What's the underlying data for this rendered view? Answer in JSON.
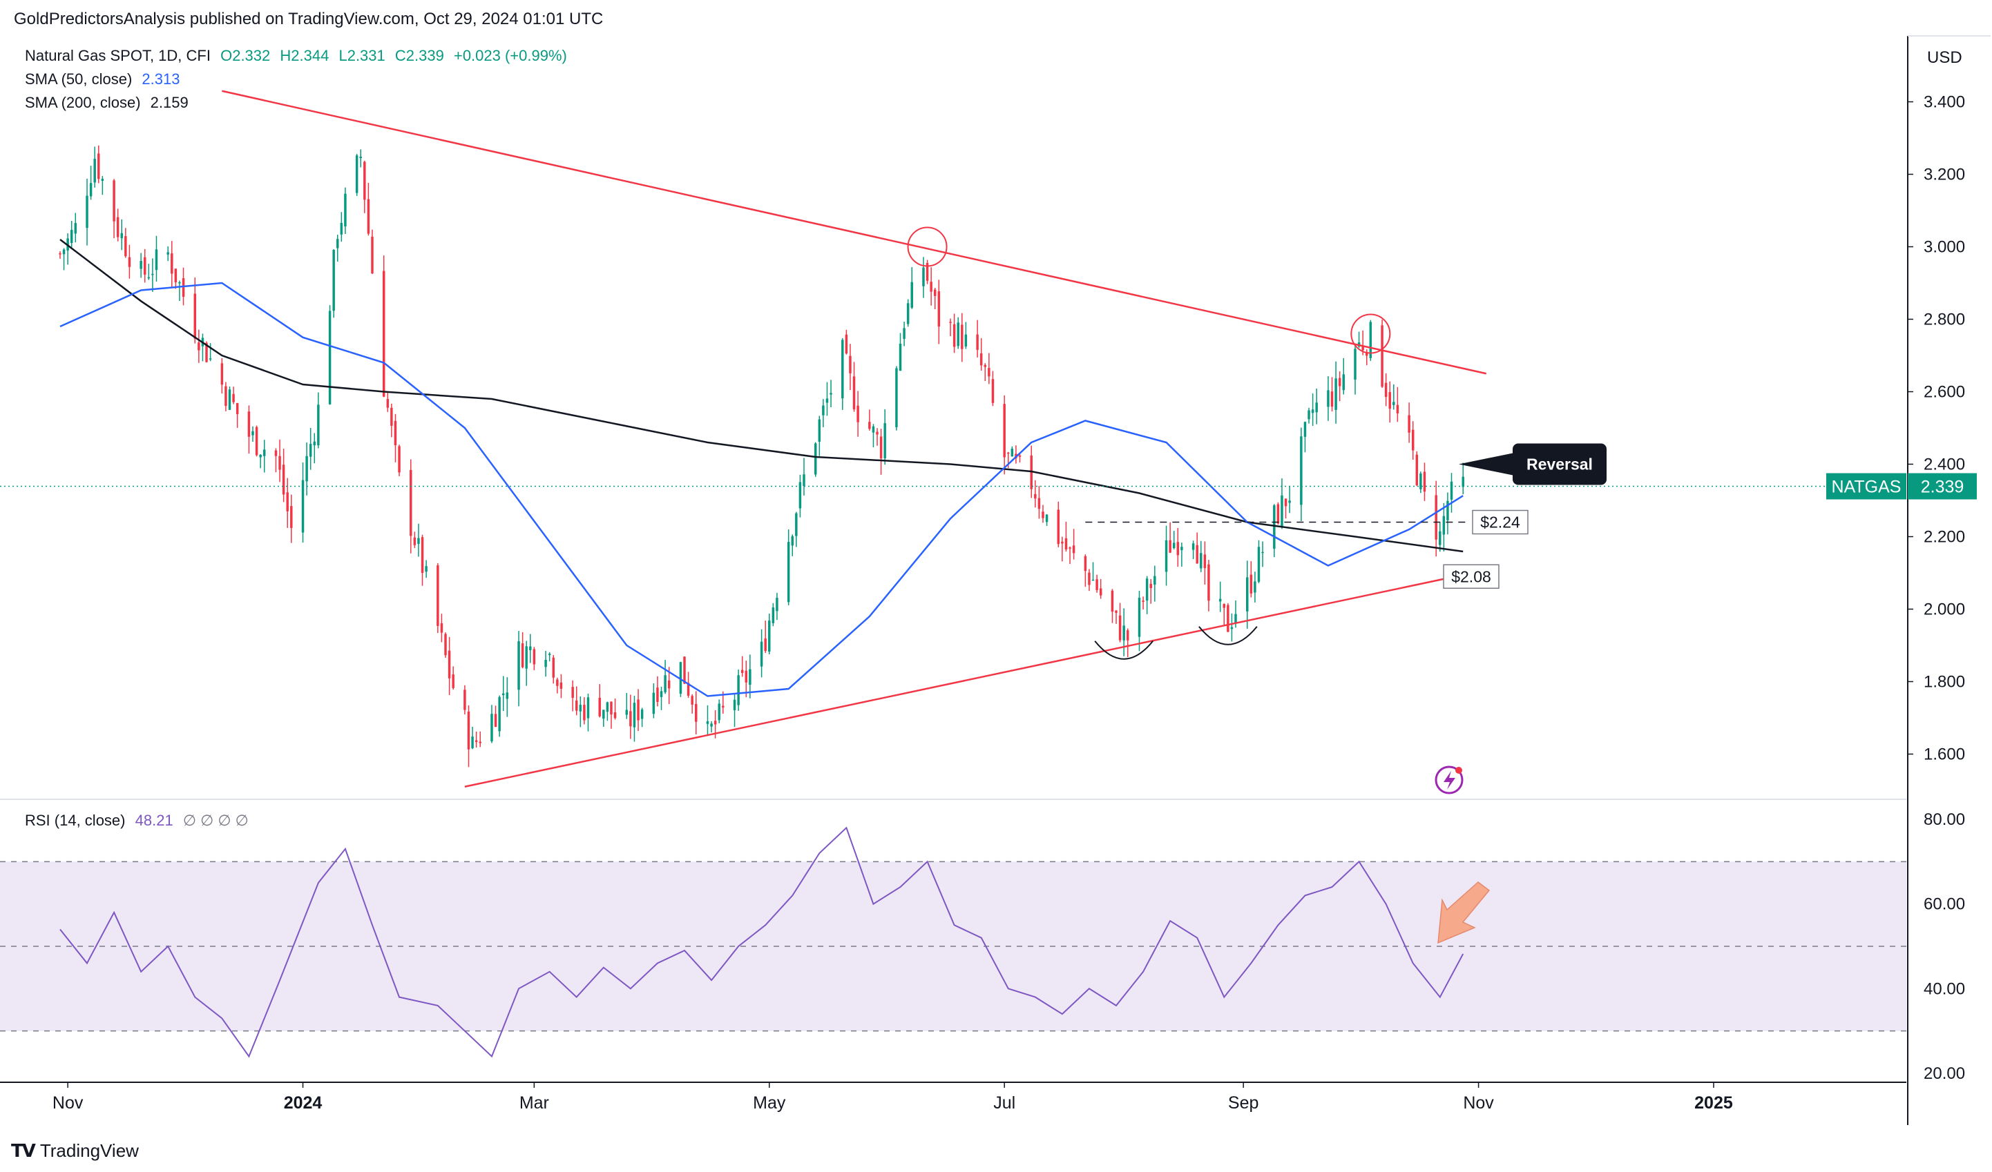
{
  "header": {
    "publisher_line": "GoldPredictorsAnalysis published on TradingView.com, Oct 29, 2024 01:01 UTC",
    "symbol_line": "Natural Gas SPOT, 1D, CFI",
    "ohlc": {
      "open": "O2.332",
      "high": "H2.344",
      "low": "L2.331",
      "close": "C2.339",
      "change": "+0.023 (+0.99%)"
    },
    "sma50_label": "SMA (50, close)",
    "sma50_value": "2.313",
    "sma200_label": "SMA (200, close)",
    "sma200_value": "2.159",
    "rsi_label": "RSI (14, close)",
    "rsi_value": "48.21",
    "rsi_extra": "∅ ∅ ∅ ∅"
  },
  "currency": "USD",
  "brand": "TradingView",
  "colors": {
    "up": "#089981",
    "down": "#f23645",
    "sma50": "#2962ff",
    "sma200": "#131722",
    "trendline": "#f23645",
    "rsi": "#7e57c2",
    "rsi_band": "#ede7f6",
    "last_price": "#089981",
    "callout": "#131722"
  },
  "annotations": {
    "reversal_label": "Reversal",
    "support_1": "$2.24",
    "support_2": "$2.08",
    "last_price_tag": "NATGAS",
    "last_price_value": "2.339"
  },
  "chart_data": [
    {
      "type": "candlestick",
      "ylim": [
        1.5,
        3.5
      ],
      "y_ticks": [
        "1.600",
        "1.800",
        "2.000",
        "2.200",
        "2.400",
        "2.600",
        "2.800",
        "3.000",
        "3.200",
        "3.400"
      ],
      "x_ticks": [
        "Nov",
        "2024",
        "Mar",
        "May",
        "Jul",
        "Sep",
        "Nov",
        "2025"
      ],
      "close_path": [
        [
          "2023-10-30",
          2.98
        ],
        [
          "2023-11-03",
          3.05
        ],
        [
          "2023-11-08",
          3.25
        ],
        [
          "2023-11-14",
          3.05
        ],
        [
          "2023-11-20",
          2.92
        ],
        [
          "2023-11-27",
          2.98
        ],
        [
          "2023-12-04",
          2.78
        ],
        [
          "2023-12-11",
          2.62
        ],
        [
          "2023-12-18",
          2.48
        ],
        [
          "2023-12-25",
          2.42
        ],
        [
          "2023-12-29",
          2.22
        ],
        [
          "2024-01-05",
          2.55
        ],
        [
          "2024-01-10",
          3.05
        ],
        [
          "2024-01-16",
          3.25
        ],
        [
          "2024-01-22",
          2.62
        ],
        [
          "2024-01-26",
          2.35
        ],
        [
          "2024-02-01",
          2.12
        ],
        [
          "2024-02-08",
          1.82
        ],
        [
          "2024-02-14",
          1.62
        ],
        [
          "2024-02-20",
          1.72
        ],
        [
          "2024-02-26",
          1.88
        ],
        [
          "2024-03-04",
          1.9
        ],
        [
          "2024-03-11",
          1.72
        ],
        [
          "2024-03-18",
          1.74
        ],
        [
          "2024-03-25",
          1.68
        ],
        [
          "2024-04-01",
          1.78
        ],
        [
          "2024-04-08",
          1.84
        ],
        [
          "2024-04-15",
          1.65
        ],
        [
          "2024-04-22",
          1.76
        ],
        [
          "2024-04-29",
          1.88
        ],
        [
          "2024-05-06",
          2.2
        ],
        [
          "2024-05-13",
          2.48
        ],
        [
          "2024-05-20",
          2.7
        ],
        [
          "2024-05-24",
          2.55
        ],
        [
          "2024-05-30",
          2.45
        ],
        [
          "2024-06-05",
          2.8
        ],
        [
          "2024-06-10",
          2.95
        ],
        [
          "2024-06-14",
          2.8
        ],
        [
          "2024-06-20",
          2.75
        ],
        [
          "2024-06-26",
          2.65
        ],
        [
          "2024-07-01",
          2.42
        ],
        [
          "2024-07-08",
          2.35
        ],
        [
          "2024-07-12",
          2.25
        ],
        [
          "2024-07-18",
          2.15
        ],
        [
          "2024-07-24",
          2.08
        ],
        [
          "2024-07-30",
          1.96
        ],
        [
          "2024-08-02",
          1.92
        ],
        [
          "2024-08-07",
          2.05
        ],
        [
          "2024-08-13",
          2.18
        ],
        [
          "2024-08-19",
          2.22
        ],
        [
          "2024-08-23",
          2.02
        ],
        [
          "2024-08-28",
          1.96
        ],
        [
          "2024-09-03",
          2.08
        ],
        [
          "2024-09-09",
          2.25
        ],
        [
          "2024-09-13",
          2.32
        ],
        [
          "2024-09-19",
          2.55
        ],
        [
          "2024-09-25",
          2.6
        ],
        [
          "2024-09-30",
          2.72
        ],
        [
          "2024-10-04",
          2.75
        ],
        [
          "2024-10-09",
          2.58
        ],
        [
          "2024-10-15",
          2.42
        ],
        [
          "2024-10-18",
          2.3
        ],
        [
          "2024-10-22",
          2.2
        ],
        [
          "2024-10-24",
          2.3
        ],
        [
          "2024-10-28",
          2.339
        ]
      ],
      "sma50_path": [
        [
          "2023-10-30",
          2.78
        ],
        [
          "2023-11-20",
          2.88
        ],
        [
          "2023-12-11",
          2.9
        ],
        [
          "2024-01-01",
          2.75
        ],
        [
          "2024-01-22",
          2.68
        ],
        [
          "2024-02-12",
          2.5
        ],
        [
          "2024-03-04",
          2.2
        ],
        [
          "2024-03-25",
          1.9
        ],
        [
          "2024-04-15",
          1.76
        ],
        [
          "2024-05-06",
          1.78
        ],
        [
          "2024-05-27",
          1.98
        ],
        [
          "2024-06-17",
          2.25
        ],
        [
          "2024-07-08",
          2.46
        ],
        [
          "2024-07-22",
          2.52
        ],
        [
          "2024-08-12",
          2.46
        ],
        [
          "2024-09-02",
          2.24
        ],
        [
          "2024-09-23",
          2.12
        ],
        [
          "2024-10-14",
          2.22
        ],
        [
          "2024-10-28",
          2.313
        ]
      ],
      "sma200_path": [
        [
          "2023-10-30",
          3.02
        ],
        [
          "2023-11-20",
          2.85
        ],
        [
          "2023-12-11",
          2.7
        ],
        [
          "2024-01-01",
          2.62
        ],
        [
          "2024-01-22",
          2.6
        ],
        [
          "2024-02-19",
          2.58
        ],
        [
          "2024-03-18",
          2.52
        ],
        [
          "2024-04-15",
          2.46
        ],
        [
          "2024-05-13",
          2.42
        ],
        [
          "2024-06-17",
          2.4
        ],
        [
          "2024-07-08",
          2.38
        ],
        [
          "2024-08-05",
          2.32
        ],
        [
          "2024-09-02",
          2.24
        ],
        [
          "2024-09-30",
          2.2
        ],
        [
          "2024-10-28",
          2.159
        ]
      ],
      "trendlines": [
        {
          "from": [
            "2023-12-11",
            3.43
          ],
          "to": [
            "2024-11-03",
            2.65
          ]
        },
        {
          "from": [
            "2024-02-12",
            1.51
          ],
          "to": [
            "2024-10-26",
            2.09
          ]
        }
      ],
      "support_lines": [
        {
          "value": 2.24,
          "from": "2024-07-22",
          "to": "2024-10-29"
        }
      ],
      "reversal_circles": [
        [
          "2024-06-11",
          3.0
        ],
        [
          "2024-10-04",
          2.76
        ]
      ],
      "last_close": 2.339
    },
    {
      "type": "line",
      "ylim": [
        20,
        80
      ],
      "y_ticks": [
        "20.00",
        "40.00",
        "60.00",
        "80.00"
      ],
      "bands": [
        30,
        50,
        70
      ],
      "rsi_path": [
        [
          "2023-10-30",
          54
        ],
        [
          "2023-11-06",
          46
        ],
        [
          "2023-11-13",
          58
        ],
        [
          "2023-11-20",
          44
        ],
        [
          "2023-11-27",
          50
        ],
        [
          "2023-12-04",
          38
        ],
        [
          "2023-12-11",
          33
        ],
        [
          "2023-12-18",
          24
        ],
        [
          "2023-12-26",
          42
        ],
        [
          "2024-01-05",
          65
        ],
        [
          "2024-01-12",
          73
        ],
        [
          "2024-01-19",
          55
        ],
        [
          "2024-01-26",
          38
        ],
        [
          "2024-02-05",
          36
        ],
        [
          "2024-02-12",
          30
        ],
        [
          "2024-02-19",
          24
        ],
        [
          "2024-02-26",
          40
        ],
        [
          "2024-03-05",
          44
        ],
        [
          "2024-03-12",
          38
        ],
        [
          "2024-03-19",
          45
        ],
        [
          "2024-03-26",
          40
        ],
        [
          "2024-04-02",
          46
        ],
        [
          "2024-04-09",
          49
        ],
        [
          "2024-04-16",
          42
        ],
        [
          "2024-04-23",
          50
        ],
        [
          "2024-04-30",
          55
        ],
        [
          "2024-05-07",
          62
        ],
        [
          "2024-05-14",
          72
        ],
        [
          "2024-05-21",
          78
        ],
        [
          "2024-05-28",
          60
        ],
        [
          "2024-06-04",
          64
        ],
        [
          "2024-06-11",
          70
        ],
        [
          "2024-06-18",
          55
        ],
        [
          "2024-06-25",
          52
        ],
        [
          "2024-07-02",
          40
        ],
        [
          "2024-07-09",
          38
        ],
        [
          "2024-07-16",
          34
        ],
        [
          "2024-07-23",
          40
        ],
        [
          "2024-07-30",
          36
        ],
        [
          "2024-08-06",
          44
        ],
        [
          "2024-08-13",
          56
        ],
        [
          "2024-08-20",
          52
        ],
        [
          "2024-08-27",
          38
        ],
        [
          "2024-09-03",
          46
        ],
        [
          "2024-09-10",
          55
        ],
        [
          "2024-09-17",
          62
        ],
        [
          "2024-09-24",
          64
        ],
        [
          "2024-10-01",
          70
        ],
        [
          "2024-10-08",
          60
        ],
        [
          "2024-10-15",
          46
        ],
        [
          "2024-10-22",
          38
        ],
        [
          "2024-10-28",
          48.21
        ]
      ]
    }
  ]
}
